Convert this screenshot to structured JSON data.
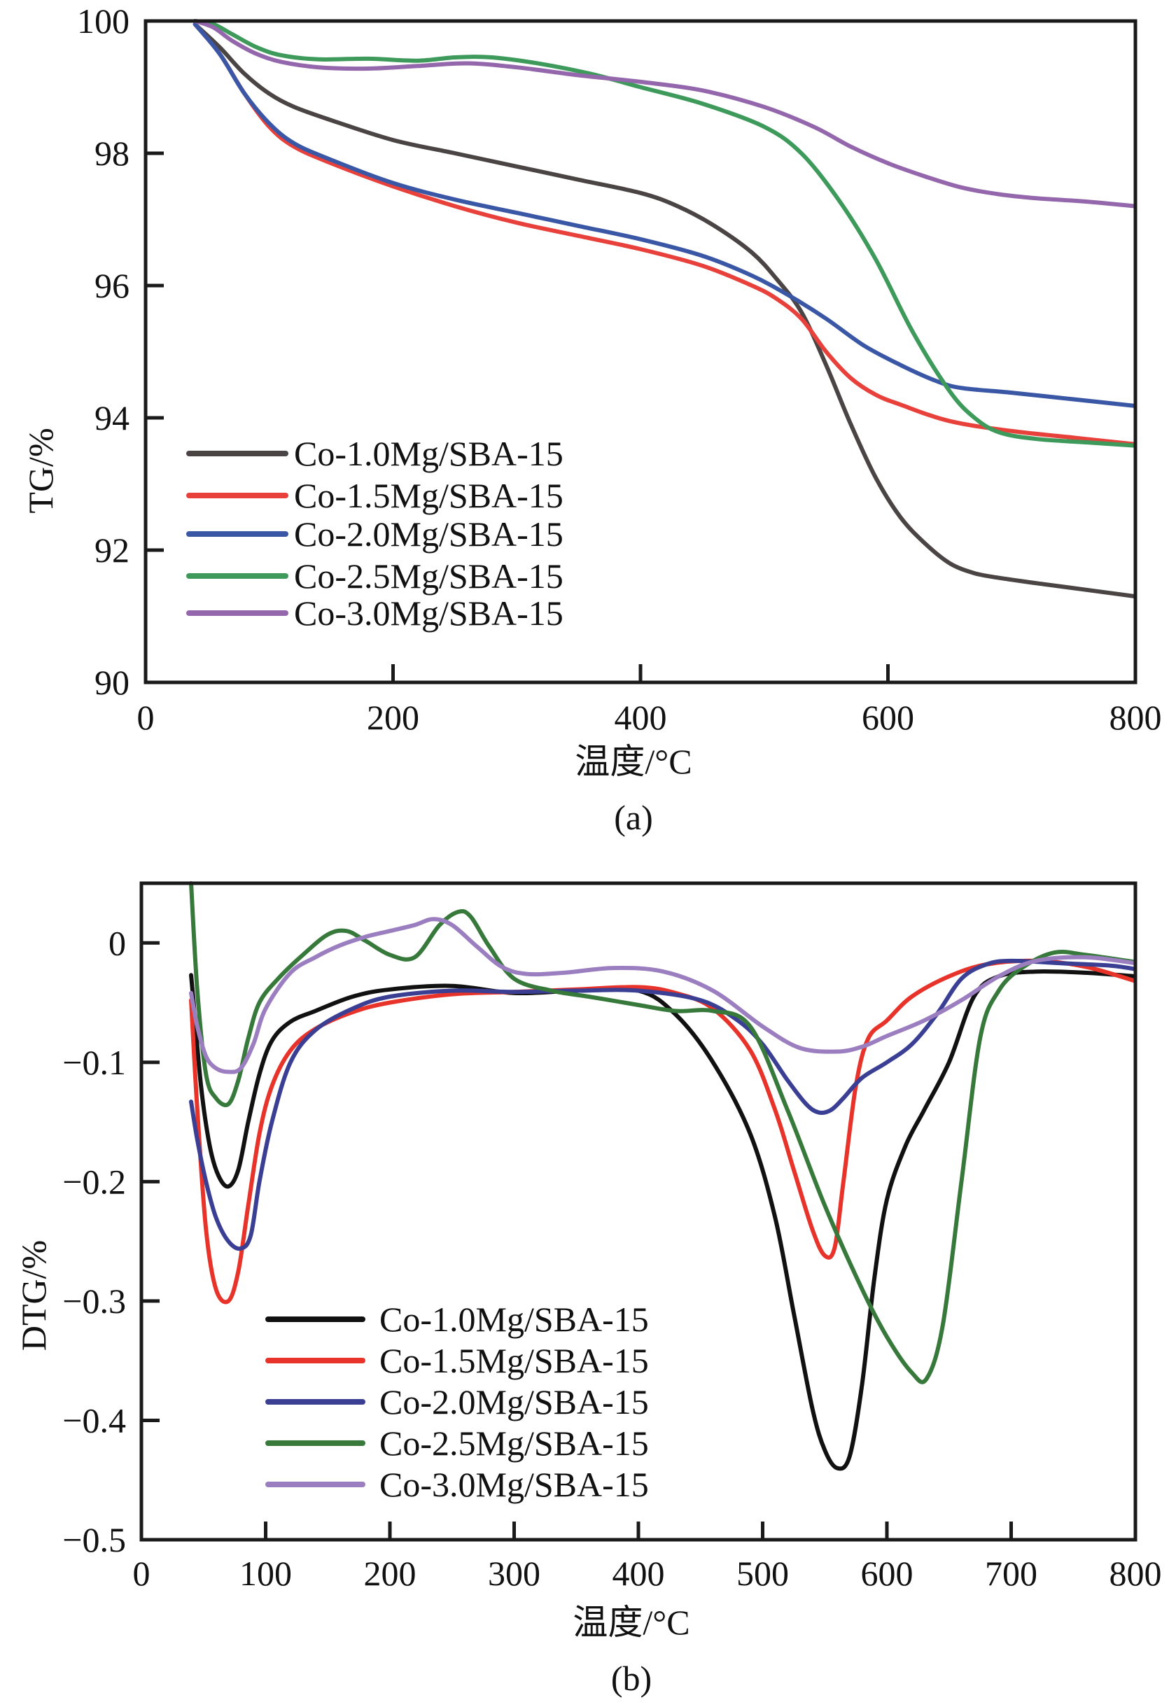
{
  "chart_data": [
    {
      "id": "a",
      "type": "line",
      "panel_label": "(a)",
      "title": "",
      "xlabel": "温度/°C",
      "ylabel": "TG/%",
      "xlim": [
        0,
        800
      ],
      "ylim": [
        90,
        100
      ],
      "xticks": [
        0,
        200,
        400,
        600,
        800
      ],
      "yticks": [
        90,
        92,
        94,
        96,
        98,
        100
      ],
      "xtick_labels": [
        "0",
        "200",
        "400",
        "600",
        "800"
      ],
      "ytick_labels": [
        "90",
        "92",
        "94",
        "96",
        "98",
        "100"
      ],
      "grid": false,
      "legend_position": "bottom-left",
      "series": [
        {
          "name": "Co-1.0Mg/SBA-15",
          "color": "#4a4444",
          "x": [
            40,
            60,
            80,
            100,
            120,
            150,
            200,
            250,
            300,
            350,
            400,
            430,
            460,
            490,
            510,
            530,
            550,
            570,
            590,
            610,
            630,
            650,
            670,
            690,
            720,
            760,
            800
          ],
          "y": [
            99.95,
            99.6,
            99.2,
            98.9,
            98.7,
            98.5,
            98.2,
            98.0,
            97.8,
            97.6,
            97.4,
            97.2,
            96.9,
            96.5,
            96.1,
            95.6,
            94.8,
            93.9,
            93.1,
            92.5,
            92.1,
            91.8,
            91.65,
            91.58,
            91.5,
            91.4,
            91.3
          ]
        },
        {
          "name": "Co-1.5Mg/SBA-15",
          "color": "#e8413c",
          "x": [
            40,
            60,
            80,
            100,
            120,
            150,
            200,
            250,
            300,
            350,
            400,
            450,
            490,
            510,
            530,
            550,
            570,
            590,
            610,
            650,
            700,
            750,
            800
          ],
          "y": [
            99.95,
            99.5,
            98.9,
            98.4,
            98.1,
            97.85,
            97.5,
            97.2,
            96.95,
            96.75,
            96.55,
            96.3,
            96.0,
            95.8,
            95.5,
            95.0,
            94.6,
            94.35,
            94.2,
            93.95,
            93.8,
            93.7,
            93.6
          ]
        },
        {
          "name": "Co-2.0Mg/SBA-15",
          "color": "#3a57a6",
          "x": [
            40,
            60,
            80,
            100,
            120,
            150,
            200,
            250,
            300,
            350,
            400,
            450,
            490,
            520,
            550,
            580,
            610,
            640,
            660,
            700,
            750,
            800
          ],
          "y": [
            99.95,
            99.5,
            98.9,
            98.45,
            98.15,
            97.9,
            97.55,
            97.3,
            97.1,
            96.9,
            96.7,
            96.45,
            96.15,
            95.85,
            95.5,
            95.1,
            94.8,
            94.55,
            94.45,
            94.38,
            94.28,
            94.18
          ]
        },
        {
          "name": "Co-2.5Mg/SBA-15",
          "color": "#3d9a5a",
          "x": [
            40,
            55,
            70,
            90,
            110,
            140,
            180,
            220,
            250,
            280,
            320,
            360,
            400,
            450,
            500,
            530,
            560,
            590,
            620,
            650,
            670,
            690,
            720,
            760,
            800
          ],
          "y": [
            100.0,
            99.95,
            99.8,
            99.6,
            99.48,
            99.42,
            99.43,
            99.4,
            99.45,
            99.45,
            99.35,
            99.2,
            99.0,
            98.75,
            98.4,
            98.0,
            97.3,
            96.4,
            95.3,
            94.4,
            94.0,
            93.78,
            93.68,
            93.63,
            93.58
          ]
        },
        {
          "name": "Co-3.0Mg/SBA-15",
          "color": "#9467ad",
          "x": [
            40,
            55,
            70,
            90,
            110,
            140,
            180,
            220,
            260,
            300,
            350,
            400,
            450,
            500,
            540,
            570,
            600,
            630,
            660,
            690,
            720,
            760,
            800
          ],
          "y": [
            100.0,
            99.9,
            99.7,
            99.5,
            99.38,
            99.3,
            99.28,
            99.32,
            99.36,
            99.3,
            99.18,
            99.08,
            98.95,
            98.7,
            98.4,
            98.1,
            97.85,
            97.65,
            97.48,
            97.38,
            97.32,
            97.27,
            97.2
          ]
        }
      ]
    },
    {
      "id": "b",
      "type": "line",
      "panel_label": "(b)",
      "title": "",
      "xlabel": "温度/°C",
      "ylabel": "DTG/%",
      "xlim": [
        0,
        800
      ],
      "ylim": [
        -0.5,
        0.05
      ],
      "xticks": [
        0,
        100,
        200,
        300,
        400,
        500,
        600,
        700,
        800
      ],
      "yticks": [
        -0.5,
        -0.4,
        -0.3,
        -0.2,
        -0.1,
        0
      ],
      "xtick_labels": [
        "0",
        "100",
        "200",
        "300",
        "400",
        "500",
        "600",
        "700",
        "800"
      ],
      "ytick_labels": [
        "−0.5",
        "−0.4",
        "−0.3",
        "−0.2",
        "−0.1",
        "0"
      ],
      "grid": false,
      "legend_position": "bottom-left",
      "series": [
        {
          "name": "Co-1.0Mg/SBA-15",
          "color": "#111111",
          "x": [
            40,
            42,
            48,
            55,
            62,
            70,
            78,
            86,
            95,
            105,
            120,
            140,
            170,
            200,
            250,
            300,
            350,
            400,
            430,
            460,
            490,
            510,
            525,
            540,
            550,
            560,
            570,
            580,
            590,
            600,
            615,
            630,
            650,
            670,
            690,
            720,
            760,
            800
          ],
          "y": [
            -0.027,
            -0.05,
            -0.12,
            -0.17,
            -0.195,
            -0.204,
            -0.19,
            -0.15,
            -0.11,
            -0.082,
            -0.066,
            -0.057,
            -0.045,
            -0.039,
            -0.036,
            -0.042,
            -0.04,
            -0.04,
            -0.06,
            -0.1,
            -0.16,
            -0.23,
            -0.31,
            -0.39,
            -0.425,
            -0.44,
            -0.43,
            -0.37,
            -0.28,
            -0.215,
            -0.17,
            -0.14,
            -0.1,
            -0.045,
            -0.028,
            -0.024,
            -0.025,
            -0.028
          ]
        },
        {
          "name": "Co-1.5Mg/SBA-15",
          "color": "#e8332a",
          "x": [
            40,
            45,
            52,
            60,
            70,
            78,
            86,
            95,
            105,
            120,
            140,
            170,
            200,
            250,
            300,
            350,
            400,
            430,
            460,
            490,
            510,
            525,
            540,
            550,
            558,
            565,
            575,
            585,
            600,
            620,
            650,
            680,
            720,
            760,
            800
          ],
          "y": [
            -0.048,
            -0.14,
            -0.24,
            -0.29,
            -0.3,
            -0.275,
            -0.22,
            -0.16,
            -0.12,
            -0.09,
            -0.072,
            -0.058,
            -0.05,
            -0.043,
            -0.041,
            -0.039,
            -0.037,
            -0.042,
            -0.055,
            -0.09,
            -0.14,
            -0.19,
            -0.24,
            -0.262,
            -0.255,
            -0.2,
            -0.12,
            -0.08,
            -0.065,
            -0.045,
            -0.028,
            -0.018,
            -0.015,
            -0.02,
            -0.032
          ]
        },
        {
          "name": "Co-2.0Mg/SBA-15",
          "color": "#3b3f94",
          "x": [
            40,
            45,
            52,
            60,
            70,
            80,
            88,
            95,
            105,
            120,
            140,
            170,
            200,
            250,
            300,
            350,
            400,
            450,
            480,
            500,
            520,
            535,
            545,
            555,
            565,
            580,
            600,
            620,
            640,
            660,
            680,
            700,
            740,
            780,
            800
          ],
          "y": [
            -0.133,
            -0.165,
            -0.2,
            -0.23,
            -0.25,
            -0.256,
            -0.245,
            -0.2,
            -0.15,
            -0.1,
            -0.073,
            -0.055,
            -0.045,
            -0.04,
            -0.041,
            -0.04,
            -0.04,
            -0.048,
            -0.065,
            -0.085,
            -0.115,
            -0.135,
            -0.142,
            -0.14,
            -0.13,
            -0.113,
            -0.1,
            -0.085,
            -0.06,
            -0.03,
            -0.018,
            -0.015,
            -0.017,
            -0.019,
            -0.022
          ]
        },
        {
          "name": "Co-2.5Mg/SBA-15",
          "color": "#36793a",
          "x": [
            40,
            45,
            52,
            60,
            70,
            78,
            86,
            95,
            110,
            130,
            150,
            165,
            180,
            200,
            220,
            240,
            255,
            265,
            280,
            300,
            330,
            360,
            400,
            430,
            460,
            490,
            520,
            550,
            580,
            600,
            620,
            632,
            645,
            660,
            675,
            690,
            710,
            735,
            760,
            800
          ],
          "y": [
            0.05,
            -0.04,
            -0.11,
            -0.13,
            -0.135,
            -0.115,
            -0.08,
            -0.05,
            -0.03,
            -0.01,
            0.007,
            0.01,
            0.002,
            -0.01,
            -0.012,
            0.015,
            0.026,
            0.022,
            -0.003,
            -0.03,
            -0.04,
            -0.045,
            -0.052,
            -0.057,
            -0.057,
            -0.07,
            -0.14,
            -0.22,
            -0.29,
            -0.33,
            -0.36,
            -0.365,
            -0.32,
            -0.2,
            -0.08,
            -0.04,
            -0.02,
            -0.008,
            -0.01,
            -0.016
          ]
        },
        {
          "name": "Co-3.0Mg/SBA-15",
          "color": "#9b7ec0",
          "x": [
            40,
            45,
            52,
            60,
            70,
            80,
            90,
            100,
            120,
            140,
            160,
            180,
            200,
            220,
            235,
            250,
            270,
            290,
            310,
            340,
            380,
            420,
            460,
            500,
            530,
            560,
            580,
            600,
            630,
            660,
            690,
            720,
            760,
            800
          ],
          "y": [
            -0.042,
            -0.07,
            -0.095,
            -0.105,
            -0.108,
            -0.105,
            -0.085,
            -0.055,
            -0.025,
            -0.012,
            -0.002,
            0.005,
            0.01,
            0.015,
            0.02,
            0.015,
            -0.003,
            -0.02,
            -0.026,
            -0.025,
            -0.021,
            -0.024,
            -0.04,
            -0.07,
            -0.088,
            -0.091,
            -0.087,
            -0.078,
            -0.065,
            -0.048,
            -0.028,
            -0.015,
            -0.012,
            -0.017
          ]
        }
      ]
    }
  ]
}
